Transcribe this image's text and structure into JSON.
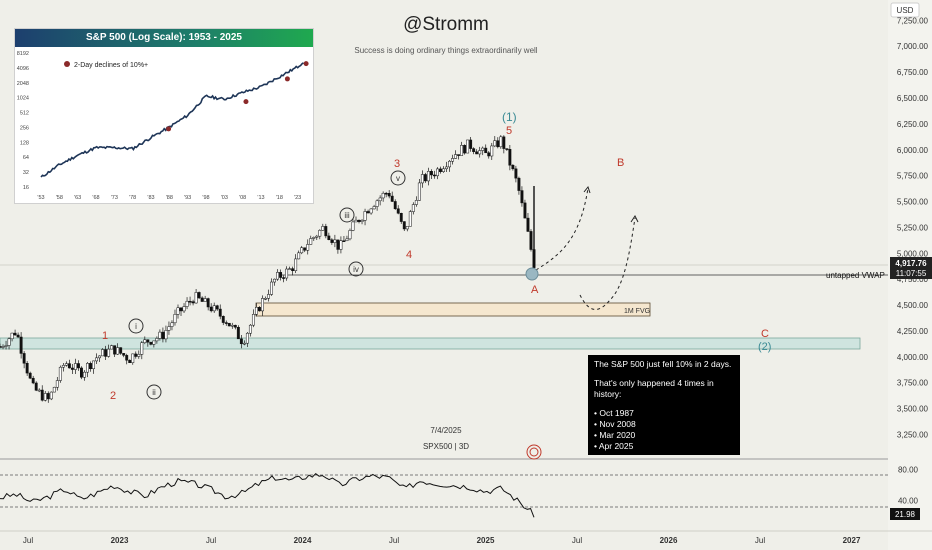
{
  "header": {
    "title": "@Stromm",
    "subtitle": "Success is doing ordinary things extraordinarily well"
  },
  "currency": "USD",
  "symbol_label": "SPX500 | 3D",
  "date_label": "7/4/2025",
  "price_badge": {
    "price": "4,917.76",
    "time": "11:07:55"
  },
  "rsi_badge": "21.98",
  "colors": {
    "accent_red": "#c0392b",
    "accent_teal": "#3a8a94",
    "up": "#1a1a1a",
    "down": "#111111"
  },
  "chart_data": [
    {
      "type": "line",
      "title": "",
      "xlabel": "",
      "ylabel": "",
      "x_ticks": [
        "Jul",
        "2023",
        "Jul",
        "2024",
        "Jul",
        "2025",
        "Jul",
        "2026",
        "Jul",
        "2027"
      ],
      "y_ticks": [
        "7,250.00",
        "7,000.00",
        "6,750.00",
        "6,500.00",
        "6,250.00",
        "6,000.00",
        "5,750.00",
        "5,500.00",
        "5,250.00",
        "5,000.00",
        "4,750.00",
        "4,500.00",
        "4,250.00",
        "4,000.00",
        "3,750.00",
        "3,500.00",
        "3,250.00"
      ],
      "ylim": [
        3100,
        7350
      ],
      "series": [
        {
          "name": "",
          "x": [
            "2022-07",
            "2022-08",
            "2022-09",
            "2022-10",
            "2022-11",
            "2022-12",
            "2023-01",
            "2023-02",
            "2023-03",
            "2023-04",
            "2023-05",
            "2023-06",
            "2023-07",
            "2023-08",
            "2023-09",
            "2023-10",
            "2023-11",
            "2023-12",
            "2024-01",
            "2024-02",
            "2024-03",
            "2024-04",
            "2024-05",
            "2024-06",
            "2024-07",
            "2024-08",
            "2024-09",
            "2024-10",
            "2024-11",
            "2024-12",
            "2025-01",
            "2025-02",
            "2025-03",
            "2025-04"
          ],
          "values": [
            4100,
            4250,
            3700,
            3580,
            3950,
            3850,
            4000,
            4080,
            3980,
            4150,
            4200,
            4420,
            4580,
            4480,
            4350,
            4150,
            4480,
            4750,
            4850,
            5100,
            5250,
            5050,
            5300,
            5480,
            5600,
            5200,
            5700,
            5800,
            5950,
            6050,
            5950,
            6100,
            5650,
            4900
          ]
        }
      ],
      "annotations": {
        "wave_labels": [
          "1",
          "2",
          "i",
          "ii",
          "iii",
          "iv",
          "v",
          "3",
          "4",
          "5",
          "(1)",
          "A",
          "B",
          "C",
          "(2)"
        ],
        "levels": [
          {
            "label": "untapped VWAP",
            "value": 4917
          },
          {
            "label": "1M FVG",
            "value_low": 4400,
            "value_high": 4530
          }
        ],
        "zone": {
          "value_low": 4080,
          "value_high": 4180
        }
      }
    },
    {
      "type": "line",
      "title": "",
      "y_ticks": [
        "80.00",
        "40.00"
      ],
      "ylim": [
        15,
        90
      ],
      "series": [
        {
          "name": "",
          "values": [
            44,
            48,
            38,
            45,
            55,
            42,
            50,
            60,
            52,
            46,
            58,
            65,
            62,
            55,
            45,
            50,
            62,
            70,
            66,
            72,
            74,
            60,
            68,
            72,
            70,
            55,
            66,
            62,
            60,
            58,
            52,
            56,
            40,
            22
          ]
        }
      ]
    },
    {
      "type": "line",
      "title": "S&P 500 (Log Scale): 1953 - 2025",
      "legend": "2-Day declines of 10%+",
      "x_ticks": [
        "'53",
        "'58",
        "'63",
        "'68",
        "'73",
        "'78",
        "'83",
        "'88",
        "'93",
        "'98",
        "'03",
        "'08",
        "'13",
        "'18",
        "'23"
      ],
      "y_ticks": [
        "8192",
        "4096",
        "2048",
        "1024",
        "512",
        "256",
        "128",
        "64",
        "32",
        "16"
      ],
      "yscale": "log",
      "ylim": [
        16,
        8192
      ],
      "series": [
        {
          "name": "",
          "x": [
            1953,
            1958,
            1963,
            1968,
            1973,
            1978,
            1983,
            1988,
            1993,
            1998,
            2003,
            2008,
            2013,
            2018,
            2023,
            2025
          ],
          "values": [
            25,
            45,
            70,
            100,
            100,
            95,
            160,
            260,
            450,
            1100,
            950,
            1300,
            1700,
            2700,
            4300,
            5800
          ]
        }
      ],
      "marked_events": [
        "Oct 1987",
        "Nov 2008",
        "Mar 2020",
        "Apr 2025"
      ]
    }
  ],
  "note": {
    "line1": "The S&P 500 just fell 10% in 2 days.",
    "line2": "That's only happened 4 times in history:",
    "items": [
      "• Oct 1987",
      "• Nov 2008",
      "• Mar 2020",
      "• Apr 2025"
    ]
  }
}
